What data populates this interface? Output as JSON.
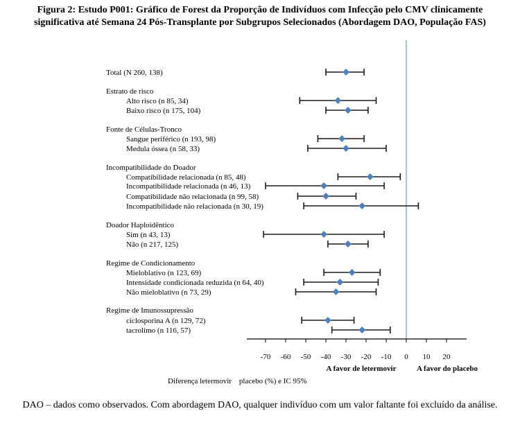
{
  "title": {
    "line1": "Figura 2: Estudo P001: Gráfico de Forest da Proporção de Indivíduos com Infecção pelo CMV clinicamente",
    "line2": "significativa até Semana 24 Pós-Transplante por Subgrupos Selecionados (Abordagem DAO, População FAS)"
  },
  "chart_data": {
    "type": "forest",
    "xlim": [
      -80,
      30
    ],
    "xticks": [
      -70,
      -60,
      -50,
      -40,
      -30,
      -20,
      -10,
      0,
      10,
      20
    ],
    "reference_line": 0,
    "favor_left": "A favor de letermovir",
    "favor_right": "A favor do placebo",
    "xlabel": "Diferença letermovir    placebo (%) e IC 95%",
    "rows": [
      {
        "kind": "group",
        "label": "Total (N  260, 138)",
        "est": -30,
        "lo": -40,
        "hi": -21
      },
      {
        "kind": "header",
        "label": "Estrato de risco"
      },
      {
        "kind": "item",
        "label": "Alto risco (n  85, 34)",
        "est": -34,
        "lo": -53,
        "hi": -15
      },
      {
        "kind": "item",
        "label": "Baixo risco (n  175, 104)",
        "est": -29,
        "lo": -40,
        "hi": -19
      },
      {
        "kind": "header",
        "label": "Fonte de Células-Tronco"
      },
      {
        "kind": "item",
        "label": "Sangue periférico (n  193, 98)",
        "est": -32,
        "lo": -44,
        "hi": -21
      },
      {
        "kind": "item",
        "label": "Medula óssea (n  58, 33)",
        "est": -30,
        "lo": -49,
        "hi": -10
      },
      {
        "kind": "header",
        "label": "Incompatibilidade do Doador"
      },
      {
        "kind": "item",
        "label": "Compatibilidade relacionada (n  85, 48)",
        "est": -18,
        "lo": -34,
        "hi": -3
      },
      {
        "kind": "item",
        "label": "Incompatibilidade relacionada (n  46, 13)",
        "est": -41,
        "lo": -70,
        "hi": -11
      },
      {
        "kind": "item",
        "label": "Compatibilidade não relacionada (n  99, 58)",
        "est": -40,
        "lo": -54,
        "hi": -25
      },
      {
        "kind": "item",
        "label": "Incompatibilidade não relacionada (n  30, 19)",
        "est": -22,
        "lo": -51,
        "hi": 6
      },
      {
        "kind": "header",
        "label": "Doador Haploidêntico"
      },
      {
        "kind": "item",
        "label": "Sim (n  43, 13)",
        "est": -41,
        "lo": -71,
        "hi": -11
      },
      {
        "kind": "item",
        "label": "Não (n  217, 125)",
        "est": -29,
        "lo": -39,
        "hi": -19
      },
      {
        "kind": "header",
        "label": "Regime de Condicionamento"
      },
      {
        "kind": "item",
        "label": "Mieloblativo (n  123, 69)",
        "est": -27,
        "lo": -41,
        "hi": -13
      },
      {
        "kind": "item",
        "label": "Intensidade condicionada reduzida (n  64, 40)",
        "est": -33,
        "lo": -51,
        "hi": -14
      },
      {
        "kind": "item",
        "label": "Não mieloblativo (n  73, 29)",
        "est": -35,
        "lo": -55,
        "hi": -15
      },
      {
        "kind": "header",
        "label": "Regime de Imunossupressão"
      },
      {
        "kind": "item",
        "label": "ciclosporina A (n  129, 72)",
        "est": -39,
        "lo": -52,
        "hi": -26
      },
      {
        "kind": "item",
        "label": "tacrolimo (n  116, 57)",
        "est": -22,
        "lo": -37,
        "hi": -8
      }
    ]
  },
  "colors": {
    "marker": "#4f81bd",
    "reference_line": "#4f81bd",
    "ci_line": "#1a1a1a"
  },
  "footnote": "DAO – dados como observados. Com abordagem DAO, qualquer indivíduo com um valor faltante foi excluído da análise."
}
